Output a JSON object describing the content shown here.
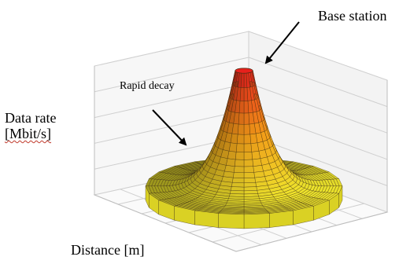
{
  "chart_data": {
    "type": "surface",
    "ylabel": "Data rate",
    "ylabel_unit": "[Mbit/s]",
    "xlabel": "Distance [m]",
    "annotations": [
      {
        "text": "Base station",
        "target": "peak"
      },
      {
        "text": "Rapid decay",
        "target": "slope"
      }
    ],
    "grid": true,
    "colors": {
      "peak": "#e8201c",
      "mid": "#f29a18",
      "base": "#efe62c",
      "mesh": "#3a2a10",
      "box": "#cfcfcf"
    }
  }
}
